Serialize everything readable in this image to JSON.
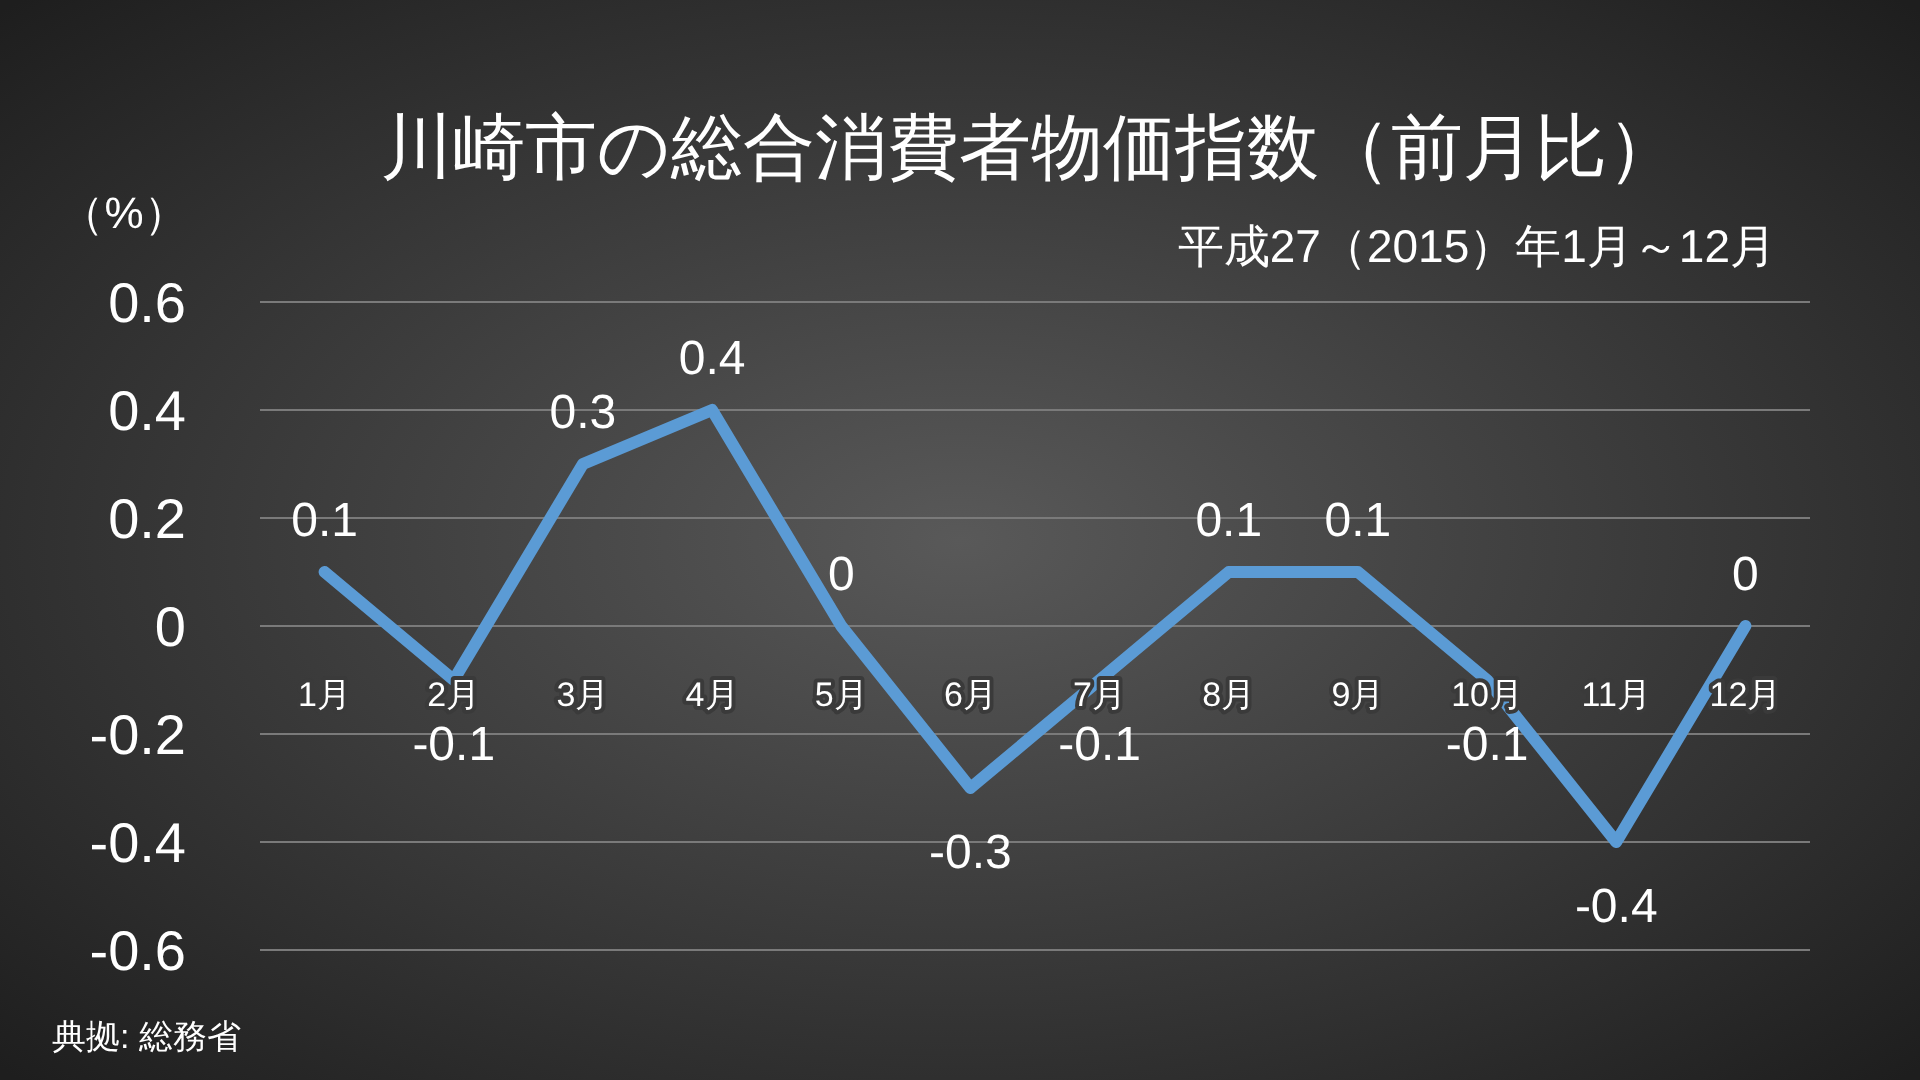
{
  "chart_data": {
    "type": "line",
    "title": "川崎市の総合消費者物価指数（前月比）",
    "subtitle": "平成27（2015）年1月～12月",
    "ylabel": "（%）",
    "categories": [
      "1月",
      "2月",
      "3月",
      "4月",
      "5月",
      "6月",
      "7月",
      "8月",
      "9月",
      "10月",
      "11月",
      "12月"
    ],
    "series": [
      {
        "color": "#5b9bd5",
        "values": [
          0.1,
          -0.1,
          0.3,
          0.4,
          0,
          -0.3,
          -0.1,
          0.1,
          0.1,
          -0.1,
          -0.4,
          0
        ]
      }
    ],
    "ylim": [
      -0.6,
      0.6
    ],
    "yticks": [
      0.6,
      0.4,
      0.2,
      0,
      -0.2,
      -0.4,
      -0.6
    ],
    "grid": "y",
    "data_labels": true,
    "marker": "none",
    "line_style": "solid",
    "annotations": [
      "典拠: 総務省"
    ]
  }
}
